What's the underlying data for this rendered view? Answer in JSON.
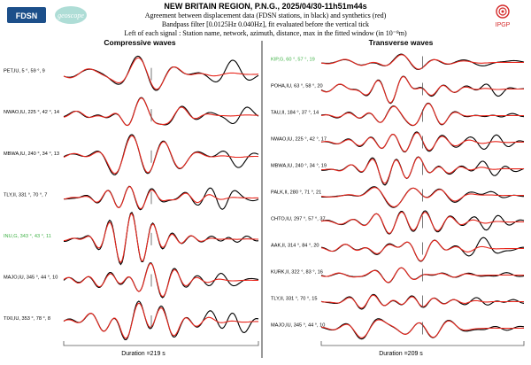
{
  "header": {
    "title": "NEW BRITAIN REGION, P.N.G., 2025/04/30-11h51m44s",
    "line1": "Agreement between displacement data (FDSN stations, in black) and synthetics (red)",
    "line2": "Bandpass filter [0.0125Hz 0.040Hz], fit evaluated before the vertical tick",
    "line3": "Left of each signal : Station name, network, azimuth, distance, max in the fitted window (in 10⁻⁸m)"
  },
  "logos": {
    "fdsn": "FDSN",
    "geoscope": "geoscope",
    "ipgp": "IPGP"
  },
  "colors": {
    "data": "#000000",
    "synthetic": "#e8261c",
    "highlight_label": "#3cb043",
    "axis": "#555555"
  },
  "chart_data": [
    {
      "type": "line",
      "title": "Compressive waves",
      "duration_label": "Duration =219 s",
      "stations": [
        {
          "label": "PET,IU, 5 °, 59 °, 9",
          "highlight": false
        },
        {
          "label": "NWAO,IU, 225 °, 42 °, 14",
          "highlight": false
        },
        {
          "label": "MBWA,IU, 240 °, 34 °, 13",
          "highlight": false
        },
        {
          "label": "TLY,II, 331 °, 70 °, 7",
          "highlight": false
        },
        {
          "label": "INU,G, 343 °, 43 °, 11",
          "highlight": true
        },
        {
          "label": "MAJO,IU, 345 °, 44 °, 10",
          "highlight": false
        },
        {
          "label": "TIXI,IU, 353 °, 78 °, 8",
          "highlight": false
        }
      ]
    },
    {
      "type": "line",
      "title": "Transverse waves",
      "duration_label": "Duration =209 s",
      "stations": [
        {
          "label": "KIP,G, 60 °, 57 °, 19",
          "highlight": true
        },
        {
          "label": "POHA,IU, 63 °, 58 °, 20",
          "highlight": false
        },
        {
          "label": "TAU,II, 184 °, 37 °, 14",
          "highlight": false
        },
        {
          "label": "NWAO,IU, 225 °, 42 °, 17",
          "highlight": false
        },
        {
          "label": "MBWA,IU, 240 °, 34 °, 19",
          "highlight": false
        },
        {
          "label": "PALK,II, 280 °, 71 °, 21",
          "highlight": false
        },
        {
          "label": "CHTO,IU, 297 °, 57 °, 37",
          "highlight": false
        },
        {
          "label": "AAK,II, 314 °, 84 °, 20",
          "highlight": false
        },
        {
          "label": "KURK,II, 322 °, 83 °, 16",
          "highlight": false
        },
        {
          "label": "TLY,II, 331 °, 70 °, 15",
          "highlight": false
        },
        {
          "label": "MAJO,IU, 345 °, 44 °, 10",
          "highlight": false
        }
      ]
    }
  ]
}
